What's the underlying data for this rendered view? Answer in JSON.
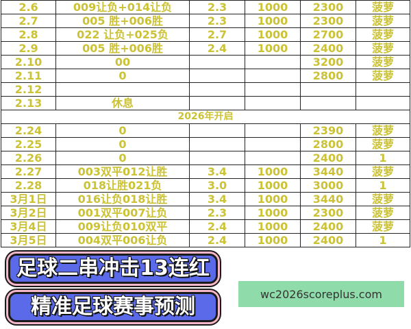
{
  "table": {
    "rows_before": [
      [
        "2.6",
        "009让负+014让负",
        "2.3",
        "1000",
        "2300",
        "菠萝"
      ],
      [
        "2.7",
        "005 胜+006胜",
        "2.3",
        "1000",
        "2300",
        "菠萝"
      ],
      [
        "2.8",
        "022 让负+025负",
        "2.7",
        "1000",
        "2700",
        "菠萝"
      ],
      [
        "2.9",
        "005 胜+006胜",
        "2.4",
        "1000",
        "2400",
        "菠萝"
      ],
      [
        "2.10",
        "00",
        "",
        "",
        "3200",
        "菠萝"
      ],
      [
        "2.11",
        "0",
        "",
        "",
        "2800",
        "菠萝"
      ],
      [
        "2.12",
        "",
        "",
        "",
        "",
        ""
      ],
      [
        "2.13",
        "休息",
        "",
        "",
        "",
        ""
      ]
    ],
    "section": "2026年开启",
    "rows_after": [
      [
        "2.24",
        "0",
        "",
        "",
        "2390",
        "菠萝"
      ],
      [
        "2.25",
        "0",
        "",
        "",
        "2800",
        "菠萝"
      ],
      [
        "2.26",
        "0",
        "",
        "",
        "2400",
        "1"
      ],
      [
        "2.27",
        "003双平012让胜",
        "3.4",
        "1000",
        "3440",
        "菠萝"
      ],
      [
        "2.28",
        "018让胜021负",
        "3.0",
        "1000",
        "3000",
        "1"
      ],
      [
        "3月1日",
        "016让负018让胜",
        "3.4",
        "1000",
        "3440",
        "菠萝"
      ],
      [
        "3月2日",
        "001双平007让负",
        "2.3",
        "1000",
        "2300",
        "菠萝"
      ],
      [
        "3月4日",
        "009让负010双平",
        "2.4",
        "1000",
        "2400",
        "菠萝"
      ],
      [
        "3月5日",
        "004双平006让负",
        "2.4",
        "1000",
        "2400",
        "1"
      ]
    ]
  },
  "banners": {
    "top": "足球二串冲击13连红",
    "bottom": "精准足球赛事预测"
  },
  "watermark": "wc2026scoreplus.com",
  "colors": {
    "cell_text": "#cbc236",
    "banner_bg": "#5a6ae8",
    "banner_border": "#f4b8c8",
    "watermark_bg": "#8fdcaa"
  }
}
